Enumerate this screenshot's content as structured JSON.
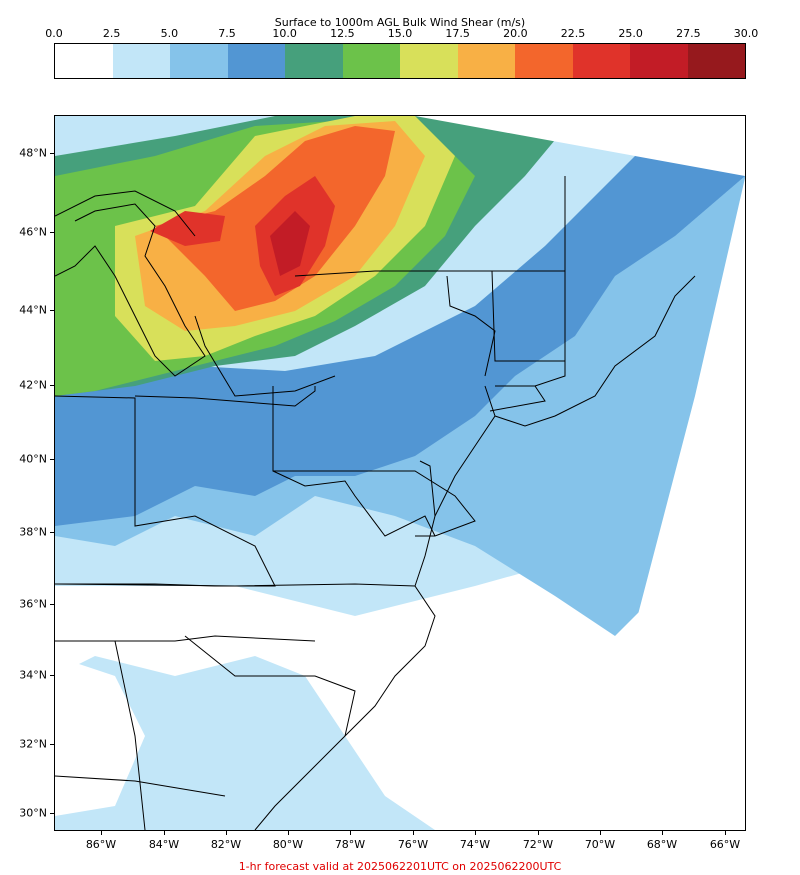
{
  "colorbar": {
    "title": "Surface to 1000m AGL Bulk Wind Shear (m/s)",
    "ticks": [
      "0.0",
      "2.5",
      "5.0",
      "7.5",
      "10.0",
      "12.5",
      "15.0",
      "17.5",
      "20.0",
      "22.5",
      "25.0",
      "27.5",
      "30.0"
    ],
    "colors": [
      "#ffffff",
      "#c2e6f8",
      "#85c3ea",
      "#5296d3",
      "#46a07c",
      "#6cc24a",
      "#d8e05a",
      "#f8b045",
      "#f3662c",
      "#e0332a",
      "#c21c26",
      "#96191d"
    ]
  },
  "map": {
    "lat_labels": [
      "48°N",
      "46°N",
      "44°N",
      "42°N",
      "40°N",
      "38°N",
      "36°N",
      "34°N",
      "32°N",
      "30°N"
    ],
    "lon_labels": [
      "86°W",
      "84°W",
      "82°W",
      "80°W",
      "78°W",
      "76°W",
      "74°W",
      "72°W",
      "70°W",
      "68°W",
      "66°W"
    ]
  },
  "footer": "1-hr forecast valid at 2025062201UTC on 2025062200UTC"
}
